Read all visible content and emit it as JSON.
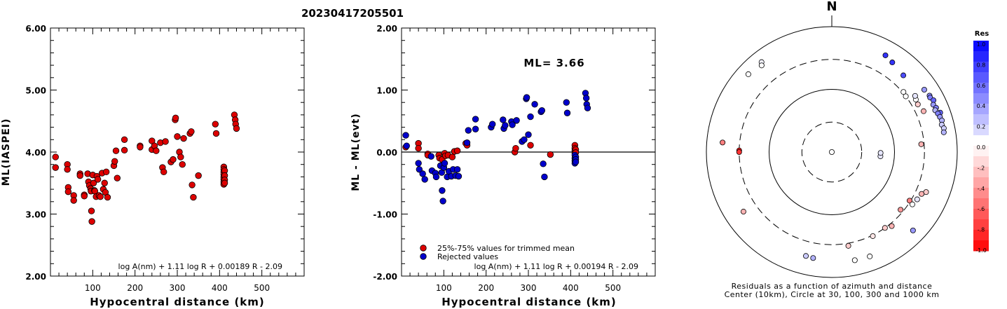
{
  "title": "20230417205501",
  "chart_data": [
    {
      "type": "scatter",
      "name": "ml-vs-distance",
      "ylabel": "ML(IASPEI)",
      "xlabel": "Hypocentral distance (km)",
      "xlim": [
        0,
        600
      ],
      "ylim": [
        2.0,
        6.0
      ],
      "xticks": [
        "100",
        "200",
        "300",
        "400",
        "500"
      ],
      "yticks": [
        "2.00",
        "3.00",
        "4.00",
        "5.00",
        "6.00"
      ],
      "formula": "log A(nm) + 1.11 log R + 0.00189 R - 2.09",
      "points": [
        [
          12,
          3.92
        ],
        [
          12,
          3.75
        ],
        [
          40,
          3.8
        ],
        [
          40,
          3.72
        ],
        [
          42,
          3.43
        ],
        [
          42,
          3.36
        ],
        [
          55,
          3.3
        ],
        [
          55,
          3.22
        ],
        [
          70,
          3.65
        ],
        [
          70,
          3.62
        ],
        [
          80,
          3.31
        ],
        [
          80,
          3.29
        ],
        [
          88,
          3.65
        ],
        [
          90,
          3.52
        ],
        [
          92,
          3.46
        ],
        [
          95,
          3.41
        ],
        [
          96,
          3.37
        ],
        [
          97,
          3.05
        ],
        [
          98,
          2.88
        ],
        [
          100,
          3.63
        ],
        [
          102,
          3.5
        ],
        [
          104,
          3.38
        ],
        [
          105,
          3.37
        ],
        [
          108,
          3.28
        ],
        [
          110,
          3.61
        ],
        [
          112,
          3.56
        ],
        [
          115,
          3.3
        ],
        [
          118,
          3.28
        ],
        [
          122,
          3.66
        ],
        [
          125,
          3.4
        ],
        [
          128,
          3.5
        ],
        [
          130,
          3.35
        ],
        [
          132,
          3.68
        ],
        [
          135,
          3.27
        ],
        [
          150,
          3.78
        ],
        [
          152,
          3.85
        ],
        [
          155,
          4.02
        ],
        [
          158,
          3.58
        ],
        [
          175,
          4.2
        ],
        [
          175,
          4.03
        ],
        [
          212,
          4.1
        ],
        [
          212,
          4.08
        ],
        [
          240,
          4.18
        ],
        [
          240,
          4.04
        ],
        [
          246,
          4.1
        ],
        [
          250,
          4.02
        ],
        [
          260,
          4.15
        ],
        [
          265,
          3.75
        ],
        [
          268,
          3.68
        ],
        [
          272,
          4.17
        ],
        [
          285,
          3.84
        ],
        [
          290,
          3.88
        ],
        [
          295,
          4.52
        ],
        [
          296,
          4.55
        ],
        [
          300,
          4.25
        ],
        [
          305,
          4.0
        ],
        [
          308,
          3.92
        ],
        [
          312,
          3.8
        ],
        [
          315,
          4.22
        ],
        [
          330,
          4.3
        ],
        [
          333,
          4.33
        ],
        [
          335,
          3.47
        ],
        [
          338,
          3.27
        ],
        [
          350,
          3.62
        ],
        [
          390,
          4.45
        ],
        [
          392,
          4.3
        ],
        [
          410,
          3.76
        ],
        [
          410,
          3.72
        ],
        [
          410,
          3.68
        ],
        [
          410,
          3.64
        ],
        [
          410,
          3.6
        ],
        [
          410,
          3.56
        ],
        [
          410,
          3.52
        ],
        [
          410,
          3.48
        ],
        [
          412,
          3.7
        ],
        [
          412,
          3.62
        ],
        [
          412,
          3.55
        ],
        [
          412,
          3.5
        ],
        [
          435,
          4.6
        ],
        [
          437,
          4.52
        ],
        [
          438,
          4.45
        ],
        [
          440,
          4.38
        ]
      ]
    },
    {
      "type": "scatter",
      "name": "residuals-vs-distance",
      "ylabel": "ML - ML(evt)",
      "xlabel": "Hypocentral distance (km)",
      "xlim": [
        0,
        600
      ],
      "ylim": [
        -2.0,
        2.0
      ],
      "xticks": [
        "100",
        "200",
        "300",
        "400",
        "500"
      ],
      "yticks": [
        "-2.00",
        "-1.00",
        "0.00",
        "1.00",
        "2.00"
      ],
      "ml_label": "ML= 3.66",
      "formula": "log A(nm) + 1.11 log R + 0.00194 R - 2.09",
      "legend": [
        "25%-75% values for trimmed mean",
        "Rejected values"
      ],
      "series": [
        {
          "name": "25%-75% values for trimmed mean",
          "color": "#dd0000",
          "points": [
            [
              10,
              0.08
            ],
            [
              40,
              0.14
            ],
            [
              40,
              0.06
            ],
            [
              62,
              -0.03
            ],
            [
              62,
              -0.05
            ],
            [
              88,
              -0.05
            ],
            [
              90,
              -0.1
            ],
            [
              96,
              -0.12
            ],
            [
              102,
              -0.02
            ],
            [
              104,
              -0.06
            ],
            [
              110,
              -0.05
            ],
            [
              120,
              -0.08
            ],
            [
              125,
              0.01
            ],
            [
              132,
              0.02
            ],
            [
              152,
              0.14
            ],
            [
              155,
              0.11
            ],
            [
              268,
              0.0
            ],
            [
              270,
              0.06
            ],
            [
              305,
              0.11
            ],
            [
              352,
              -0.04
            ],
            [
              410,
              0.11
            ],
            [
              410,
              0.06
            ],
            [
              410,
              0.02
            ],
            [
              410,
              -0.02
            ],
            [
              412,
              0.04
            ],
            [
              412,
              -0.01
            ]
          ]
        },
        {
          "name": "Rejected values",
          "color": "#0000cc",
          "points": [
            [
              10,
              0.27
            ],
            [
              12,
              0.1
            ],
            [
              40,
              -0.18
            ],
            [
              42,
              -0.28
            ],
            [
              50,
              -0.35
            ],
            [
              55,
              -0.44
            ],
            [
              70,
              -0.07
            ],
            [
              72,
              -0.3
            ],
            [
              80,
              -0.34
            ],
            [
              82,
              -0.4
            ],
            [
              92,
              -0.22
            ],
            [
              95,
              -0.33
            ],
            [
              96,
              -0.62
            ],
            [
              98,
              -0.79
            ],
            [
              100,
              -0.25
            ],
            [
              102,
              -0.18
            ],
            [
              108,
              -0.4
            ],
            [
              112,
              -0.31
            ],
            [
              118,
              -0.39
            ],
            [
              122,
              -0.28
            ],
            [
              128,
              -0.38
            ],
            [
              132,
              -0.28
            ],
            [
              135,
              -0.39
            ],
            [
              155,
              0.15
            ],
            [
              158,
              0.35
            ],
            [
              175,
              0.37
            ],
            [
              175,
              0.53
            ],
            [
              212,
              0.4
            ],
            [
              215,
              0.45
            ],
            [
              240,
              0.52
            ],
            [
              242,
              0.38
            ],
            [
              245,
              0.43
            ],
            [
              260,
              0.49
            ],
            [
              262,
              0.44
            ],
            [
              272,
              0.51
            ],
            [
              285,
              0.17
            ],
            [
              290,
              0.2
            ],
            [
              295,
              0.86
            ],
            [
              296,
              0.88
            ],
            [
              300,
              0.28
            ],
            [
              305,
              0.57
            ],
            [
              315,
              0.77
            ],
            [
              330,
              0.65
            ],
            [
              332,
              0.67
            ],
            [
              335,
              -0.19
            ],
            [
              338,
              -0.4
            ],
            [
              390,
              0.8
            ],
            [
              392,
              0.63
            ],
            [
              410,
              -0.05
            ],
            [
              410,
              -0.1
            ],
            [
              410,
              -0.14
            ],
            [
              410,
              -0.18
            ],
            [
              412,
              -0.08
            ],
            [
              412,
              -0.12
            ],
            [
              412,
              -0.16
            ],
            [
              435,
              0.95
            ],
            [
              437,
              0.87
            ],
            [
              438,
              0.77
            ],
            [
              440,
              0.71
            ]
          ]
        }
      ]
    },
    {
      "type": "polar-scatter",
      "name": "azimuth-distance-residuals",
      "north_label": "N",
      "colorbar_title": "Res",
      "colorbar_ticks": [
        "1.0",
        "0.8",
        "0.6",
        "0.4",
        "0.2",
        "0.0",
        "-.2",
        "-.4",
        "-.6",
        "-.8",
        "-1.0"
      ],
      "caption_line1": "Residuals as a function of azimuth and distance",
      "caption_line2": "Center (10km), Circle at 30, 100, 300 and 1000 km",
      "rings_km": [
        30,
        100,
        300,
        1000
      ],
      "rings_solid": [
        false,
        true,
        false,
        true
      ],
      "points": [
        [
          322,
          660,
          0.05
        ],
        [
          321,
          600,
          0.0
        ],
        [
          313,
          660,
          0.0
        ],
        [
          275,
          560,
          -0.5
        ],
        [
          271,
          300,
          -0.9
        ],
        [
          270,
          300,
          -0.8
        ],
        [
          236,
          500,
          -0.3
        ],
        [
          194,
          510,
          0.2
        ],
        [
          190,
          520,
          0.3
        ],
        [
          168,
          580,
          0.0
        ],
        [
          170,
          330,
          -0.2
        ],
        [
          160,
          590,
          0.0
        ],
        [
          134,
          630,
          0.4
        ],
        [
          154,
          310,
          -0.1
        ],
        [
          145,
          300,
          -0.2
        ],
        [
          141,
          330,
          -0.3
        ],
        [
          130,
          270,
          -0.4
        ],
        [
          122,
          290,
          -0.5
        ],
        [
          123,
          340,
          0.0
        ],
        [
          119,
          360,
          0.1
        ],
        [
          115,
          380,
          -0.3
        ],
        [
          113,
          430,
          -0.2
        ],
        [
          95,
          60,
          0.1
        ],
        [
          91,
          60,
          0.1
        ],
        [
          85,
          270,
          -0.3
        ],
        [
          66,
          400,
          -0.3
        ],
        [
          61,
          370,
          -0.2
        ],
        [
          58,
          380,
          0.0
        ],
        [
          56,
          400,
          0.1
        ],
        [
          53,
          300,
          0.0
        ],
        [
          50,
          310,
          0.0
        ],
        [
          43,
          470,
          0.7
        ],
        [
          34,
          530,
          0.8
        ],
        [
          29,
          580,
          0.8
        ],
        [
          70,
          690,
          0.6
        ],
        [
          56,
          600,
          0.4
        ],
        [
          60,
          630,
          0.45
        ],
        [
          61,
          620,
          0.5
        ],
        [
          63,
          660,
          0.6
        ],
        [
          65,
          610,
          0.4
        ],
        [
          67,
          640,
          0.5
        ],
        [
          68,
          600,
          0.3
        ],
        [
          70,
          630,
          0.5
        ],
        [
          72,
          650,
          0.4
        ],
        [
          74,
          670,
          0.3
        ],
        [
          76,
          640,
          0.2
        ],
        [
          78,
          670,
          0.2
        ],
        [
          80,
          650,
          0.3
        ],
        [
          95,
          10,
          0.0
        ]
      ]
    }
  ]
}
